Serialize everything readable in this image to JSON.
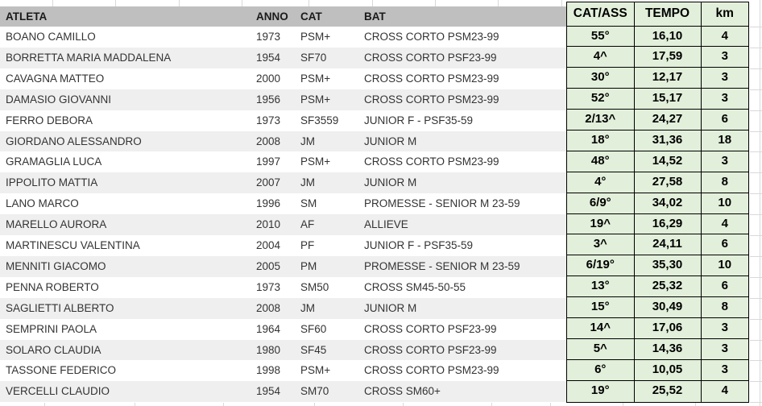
{
  "table": {
    "headers": {
      "atleta": "ATLETA",
      "anno": "ANNO",
      "cat": "CAT",
      "bat": "BAT",
      "cat_ass": "CAT/ASS",
      "tempo": "TEMPO",
      "km": "km"
    },
    "rows": [
      {
        "atleta": "BOANO CAMILLO",
        "anno": "1973",
        "cat": "PSM+",
        "bat": "CROSS CORTO PSM23-99",
        "cat_ass": "55°",
        "tempo": "16,10",
        "km": "4"
      },
      {
        "atleta": "BORRETTA MARIA MADDALENA",
        "anno": "1954",
        "cat": "SF70",
        "bat": "CROSS CORTO PSF23-99",
        "cat_ass": "4^",
        "tempo": "17,59",
        "km": "3"
      },
      {
        "atleta": "CAVAGNA MATTEO",
        "anno": "2000",
        "cat": "PSM+",
        "bat": "CROSS CORTO PSM23-99",
        "cat_ass": "30°",
        "tempo": "12,17",
        "km": "3"
      },
      {
        "atleta": "DAMASIO GIOVANNI",
        "anno": "1956",
        "cat": "PSM+",
        "bat": "CROSS CORTO PSM23-99",
        "cat_ass": "52°",
        "tempo": "15,17",
        "km": "3"
      },
      {
        "atleta": "FERRO DEBORA",
        "anno": "1973",
        "cat": "SF3559",
        "bat": "JUNIOR F - PSF35-59",
        "cat_ass": "2/13^",
        "tempo": "24,27",
        "km": "6"
      },
      {
        "atleta": "GIORDANO ALESSANDRO",
        "anno": "2008",
        "cat": "JM",
        "bat": "JUNIOR M",
        "cat_ass": "18°",
        "tempo": "31,36",
        "km": "18"
      },
      {
        "atleta": "GRAMAGLIA LUCA",
        "anno": "1997",
        "cat": "PSM+",
        "bat": "CROSS CORTO PSM23-99",
        "cat_ass": "48°",
        "tempo": "14,52",
        "km": "3"
      },
      {
        "atleta": "IPPOLITO MATTIA",
        "anno": "2007",
        "cat": "JM",
        "bat": "JUNIOR M",
        "cat_ass": "4°",
        "tempo": "27,58",
        "km": "8"
      },
      {
        "atleta": "LANO MARCO",
        "anno": "1996",
        "cat": "SM",
        "bat": "PROMESSE - SENIOR M 23-59",
        "cat_ass": "6/9°",
        "tempo": "34,02",
        "km": "10"
      },
      {
        "atleta": "MARELLO AURORA",
        "anno": "2010",
        "cat": "AF",
        "bat": "ALLIEVE",
        "cat_ass": "19^",
        "tempo": "16,29",
        "km": "4"
      },
      {
        "atleta": "MARTINESCU VALENTINA",
        "anno": "2004",
        "cat": "PF",
        "bat": "JUNIOR F - PSF35-59",
        "cat_ass": "3^",
        "tempo": "24,11",
        "km": "6"
      },
      {
        "atleta": "MENNITI GIACOMO",
        "anno": "2005",
        "cat": "PM",
        "bat": "PROMESSE - SENIOR M 23-59",
        "cat_ass": "6/19°",
        "tempo": "35,30",
        "km": "10"
      },
      {
        "atleta": "PENNA ROBERTO",
        "anno": "1973",
        "cat": "SM50",
        "bat": "CROSS SM45-50-55",
        "cat_ass": "13°",
        "tempo": "25,32",
        "km": "6"
      },
      {
        "atleta": "SAGLIETTI ALBERTO",
        "anno": "2008",
        "cat": "JM",
        "bat": "JUNIOR M",
        "cat_ass": "15°",
        "tempo": "30,49",
        "km": "8"
      },
      {
        "atleta": "SEMPRINI PAOLA",
        "anno": "1964",
        "cat": "SF60",
        "bat": "CROSS CORTO PSF23-99",
        "cat_ass": "14^",
        "tempo": "17,06",
        "km": "3"
      },
      {
        "atleta": "SOLARO CLAUDIA",
        "anno": "1980",
        "cat": "SF45",
        "bat": "CROSS CORTO PSF23-99",
        "cat_ass": "5^",
        "tempo": "14,36",
        "km": "3"
      },
      {
        "atleta": "TASSONE FEDERICO",
        "anno": "1998",
        "cat": "PSM+",
        "bat": "CROSS CORTO PSM23-99",
        "cat_ass": "6°",
        "tempo": "10,05",
        "km": "3"
      },
      {
        "atleta": "VERCELLI CLAUDIO",
        "anno": "1954",
        "cat": "SM70",
        "bat": "CROSS SM60+",
        "cat_ass": "19°",
        "tempo": "25,52",
        "km": "4"
      }
    ]
  },
  "colors": {
    "header_gray": "#bfbfbf",
    "band_gray": "#efefef",
    "green_fill": "#e2efda",
    "grid_line": "#d9d9d9",
    "table_border": "#000000"
  }
}
